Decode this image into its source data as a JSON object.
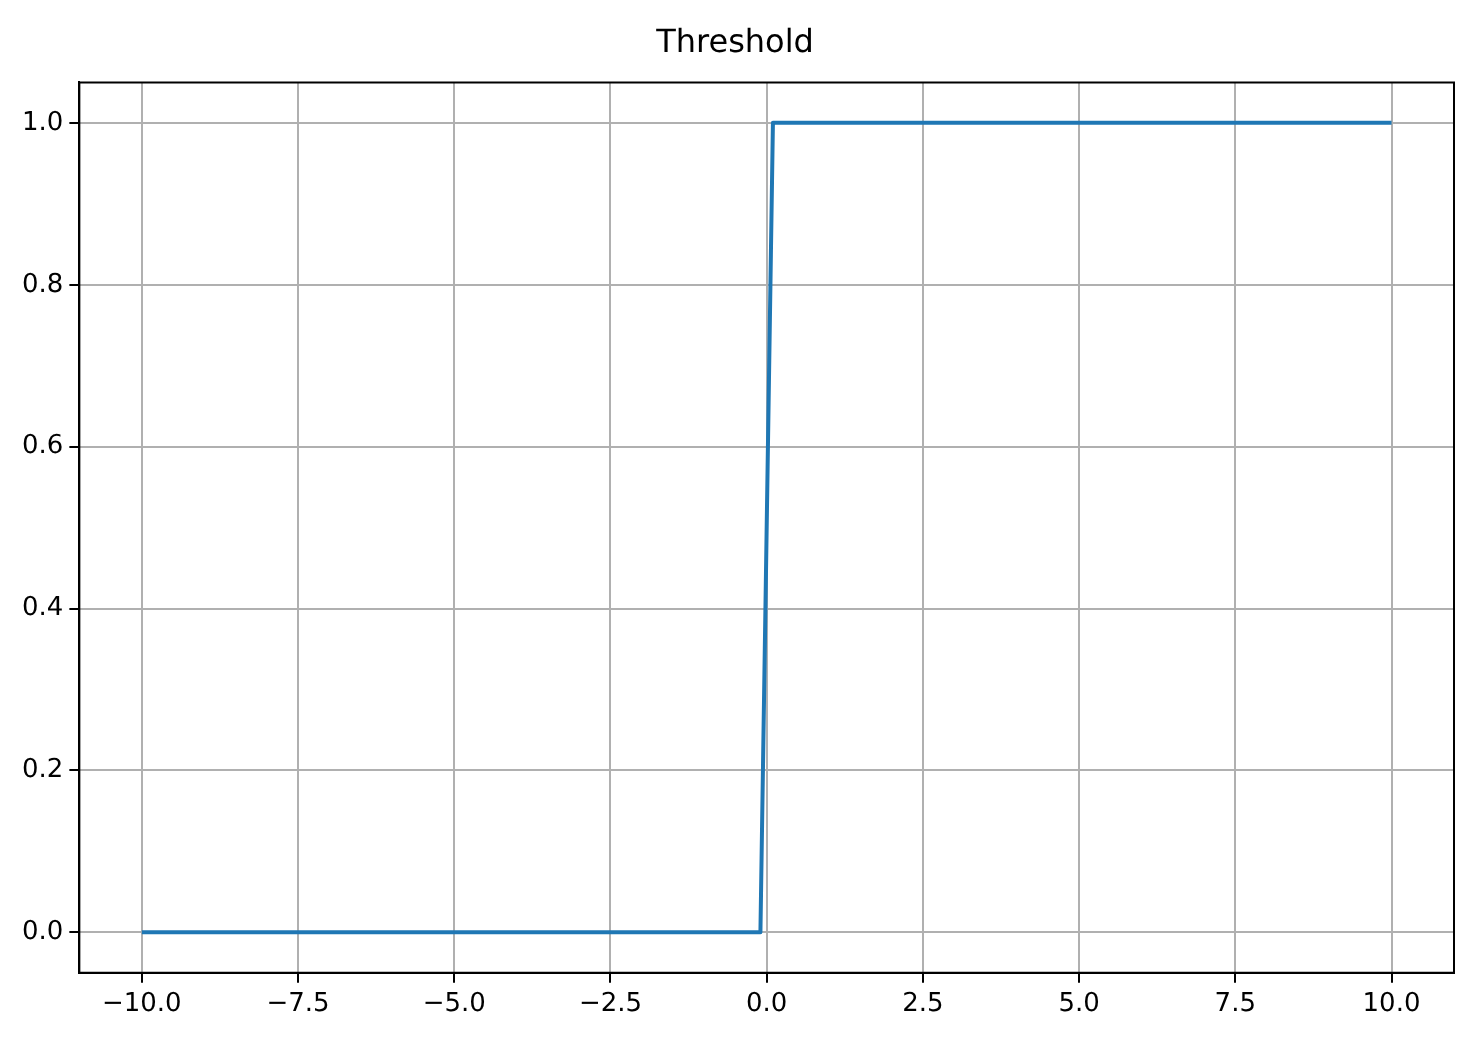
{
  "chart_data": {
    "type": "line",
    "title": "Threshold",
    "x": [
      -10,
      -0.1,
      0.1,
      10
    ],
    "series": [
      {
        "color": "#1f77b4",
        "values": [
          0,
          0,
          1,
          1
        ]
      }
    ],
    "xlim": [
      -11,
      11
    ],
    "ylim": [
      -0.05,
      1.05
    ],
    "xticks": [
      {
        "value": -10,
        "label": "−10.0"
      },
      {
        "value": -7.5,
        "label": "−7.5"
      },
      {
        "value": -5,
        "label": "−5.0"
      },
      {
        "value": -2.5,
        "label": "−2.5"
      },
      {
        "value": 0,
        "label": "0.0"
      },
      {
        "value": 2.5,
        "label": "2.5"
      },
      {
        "value": 5,
        "label": "5.0"
      },
      {
        "value": 7.5,
        "label": "7.5"
      },
      {
        "value": 10,
        "label": "10.0"
      }
    ],
    "yticks": [
      {
        "value": 0,
        "label": "0.0"
      },
      {
        "value": 0.2,
        "label": "0.2"
      },
      {
        "value": 0.4,
        "label": "0.4"
      },
      {
        "value": 0.6,
        "label": "0.6"
      },
      {
        "value": 0.8,
        "label": "0.8"
      },
      {
        "value": 1,
        "label": "1.0"
      }
    ],
    "grid": true,
    "legend": false,
    "marker": "none",
    "line_style": "solid"
  }
}
